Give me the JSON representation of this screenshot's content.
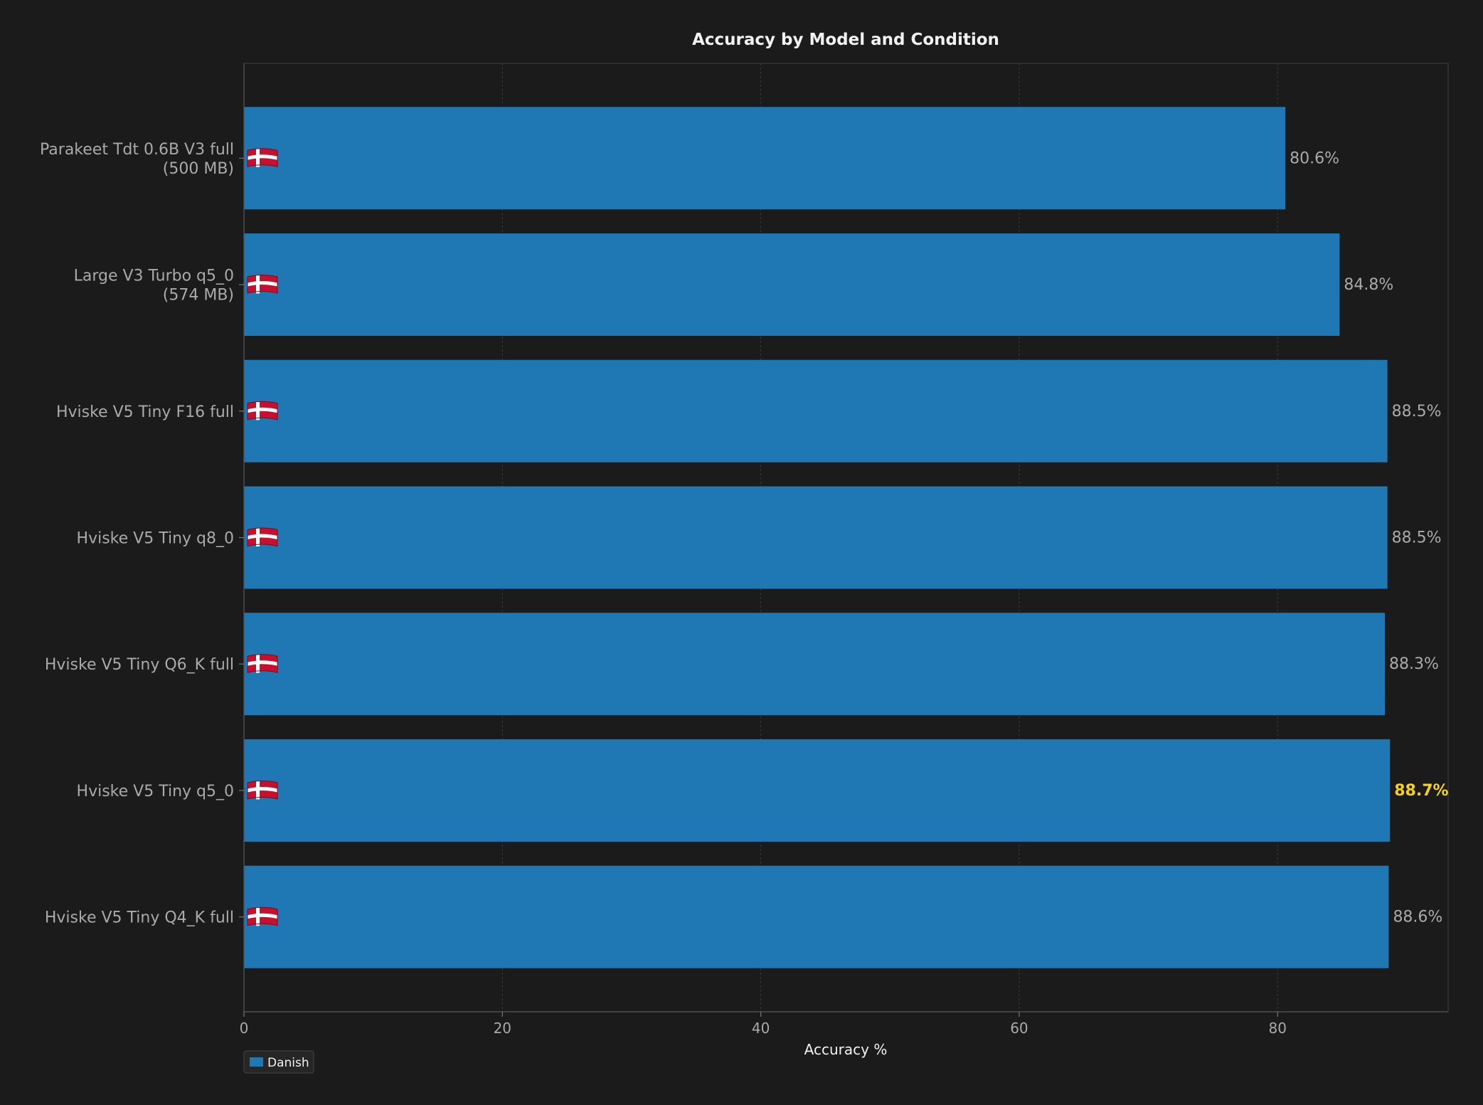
{
  "chart_data": {
    "type": "bar",
    "orientation": "horizontal",
    "title": "Accuracy by Model and Condition",
    "xlabel": "Accuracy %",
    "ylabel": "",
    "xlim": [
      0,
      93.2
    ],
    "xticks": [
      0,
      20,
      40,
      60,
      80
    ],
    "grid": true,
    "legend_position": "bottom-left",
    "bar_icon": "danish-flag-icon",
    "categories": [
      [
        "Parakeet Tdt 0.6B V3 full",
        "(500 MB)"
      ],
      [
        "Large V3 Turbo q5_0",
        "(574 MB)"
      ],
      [
        "Hviske V5 Tiny F16 full"
      ],
      [
        "Hviske V5 Tiny q8_0"
      ],
      [
        "Hviske V5 Tiny Q6_K full"
      ],
      [
        "Hviske V5 Tiny q5_0"
      ],
      [
        "Hviske V5 Tiny Q4_K full"
      ]
    ],
    "series": [
      {
        "name": "Danish",
        "color": "#1f77b4",
        "values": [
          80.6,
          84.8,
          88.5,
          88.5,
          88.3,
          88.7,
          88.6
        ],
        "labels": [
          "80.6%",
          "84.8%",
          "88.5%",
          "88.5%",
          "88.3%",
          "88.7%",
          "88.6%"
        ]
      }
    ],
    "highlight_index": 5,
    "highlight_color": "#f5d21b"
  }
}
